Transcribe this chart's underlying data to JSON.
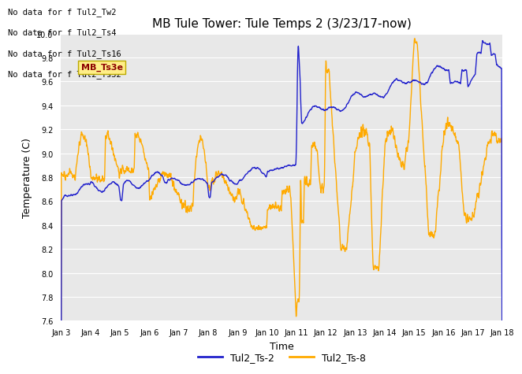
{
  "title": "MB Tule Tower: Tule Temps 2 (3/23/17-now)",
  "xlabel": "Time",
  "ylabel": "Temperature (C)",
  "ylim": [
    7.6,
    10.0
  ],
  "xlim": [
    0,
    15
  ],
  "fig_bg": "#ffffff",
  "plot_bg_color": "#e8e8e8",
  "blue_color": "#2222cc",
  "orange_color": "#ffaa00",
  "legend_labels": [
    "Tul2_Ts-2",
    "Tul2_Ts-8"
  ],
  "no_data_texts": [
    "No data for f Tul2_Tw2",
    "No data for f Tul2_Ts4",
    "No data for f Tul2_Ts16",
    "No data for f Tul2_Ts32"
  ],
  "tooltip_text": "MB_Ts3e",
  "xtick_labels": [
    "Jan 3",
    "Jan 4",
    "Jan 5",
    "Jan 6",
    "Jan 7",
    "Jan 8",
    "Jan 9",
    "Jan 10",
    "Jan 11",
    "Jan 12",
    "Jan 13",
    "Jan 14",
    "Jan 15",
    "Jan 16",
    "Jan 17",
    "Jan 18"
  ],
  "xtick_positions": [
    0,
    1,
    2,
    3,
    4,
    5,
    6,
    7,
    8,
    9,
    10,
    11,
    12,
    13,
    14,
    15
  ],
  "ytick_values": [
    7.6,
    7.8,
    8.0,
    8.2,
    8.4,
    8.6,
    8.8,
    9.0,
    9.2,
    9.4,
    9.6,
    9.8,
    10.0
  ],
  "title_fontsize": 11,
  "axis_label_fontsize": 9,
  "tick_fontsize": 8
}
